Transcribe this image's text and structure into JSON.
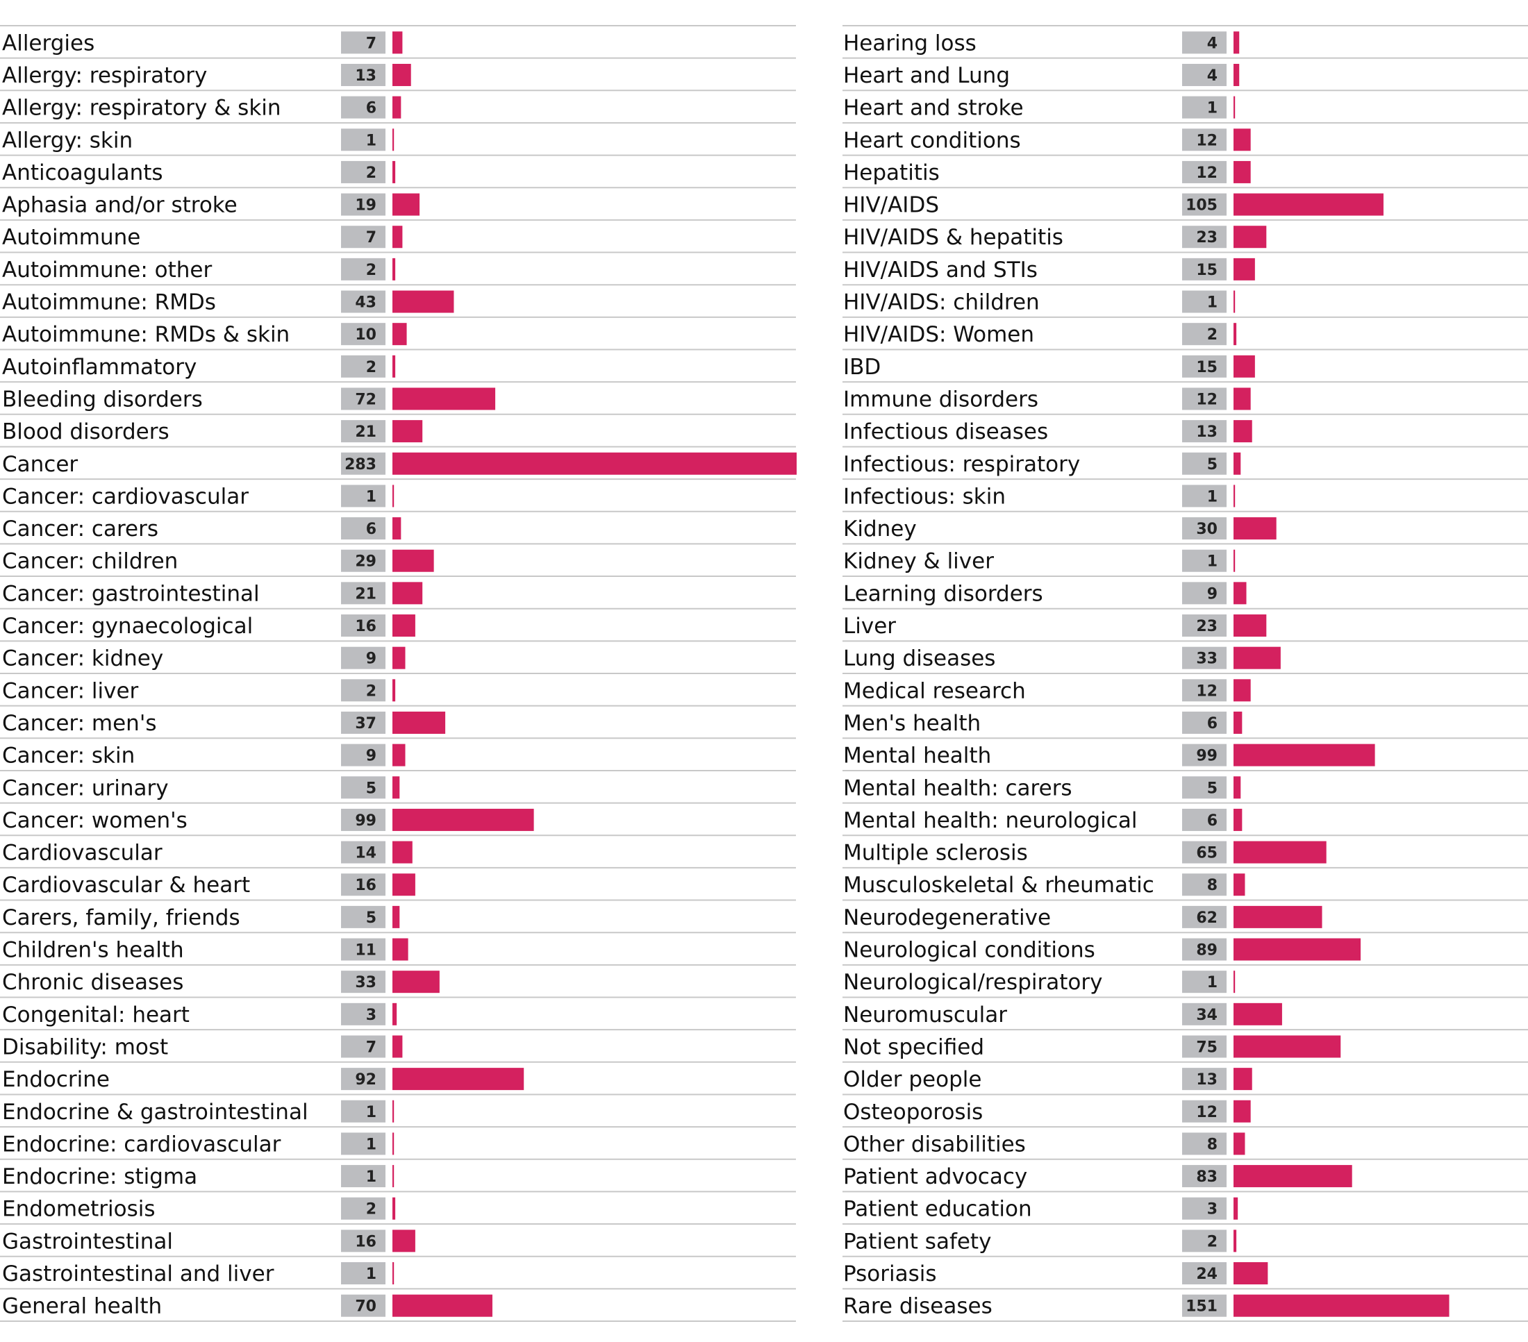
{
  "chart_data": [
    {
      "type": "bar",
      "orientation": "horizontal",
      "categories": [
        "Allergies",
        "Allergy: respiratory",
        "Allergy: respiratory & skin",
        "Allergy: skin",
        "Anticoagulants",
        "Aphasia and/or stroke",
        "Autoimmune",
        "Autoimmune: other",
        "Autoimmune: RMDs",
        "Autoimmune: RMDs & skin",
        "Autoinflammatory",
        "Bleeding disorders",
        "Blood disorders",
        "Cancer",
        "Cancer: cardiovascular",
        "Cancer: carers",
        "Cancer: children",
        "Cancer: gastrointestinal",
        "Cancer: gynaecological",
        "Cancer: kidney",
        "Cancer: liver",
        "Cancer: men's",
        "Cancer: skin",
        "Cancer: urinary",
        "Cancer: women's",
        "Cardiovascular",
        "Cardiovascular & heart",
        "Carers, family, friends",
        "Children's health",
        "Chronic diseases",
        "Congenital: heart",
        "Disability: most",
        "Endocrine",
        "Endocrine & gastrointestinal",
        "Endocrine: cardiovascular",
        "Endocrine: stigma",
        "Endometriosis",
        "Gastrointestinal",
        "Gastrointestinal and liver",
        "General health"
      ],
      "values": [
        7,
        13,
        6,
        1,
        2,
        19,
        7,
        2,
        43,
        10,
        2,
        72,
        21,
        283,
        1,
        6,
        29,
        21,
        16,
        9,
        2,
        37,
        9,
        5,
        99,
        14,
        16,
        5,
        11,
        33,
        3,
        7,
        92,
        1,
        1,
        1,
        2,
        16,
        1,
        70
      ],
      "xlim": [
        0,
        283
      ],
      "title": "",
      "xlabel": "",
      "ylabel": "",
      "grid": false,
      "legend": "none"
    },
    {
      "type": "bar",
      "orientation": "horizontal",
      "categories": [
        "Hearing loss",
        "Heart and Lung",
        "Heart and stroke",
        "Heart conditions",
        "Hepatitis",
        "HIV/AIDS",
        "HIV/AIDS & hepatitis",
        "HIV/AIDS and STIs",
        "HIV/AIDS: children",
        "HIV/AIDS: Women",
        "IBD",
        "Immune disorders",
        "Infectious diseases",
        "Infectious: respiratory",
        "Infectious: skin",
        "Kidney",
        "Kidney & liver",
        "Learning disorders",
        "Liver",
        "Lung diseases",
        "Medical research",
        "Men's health",
        "Mental health",
        "Mental health: carers",
        "Mental health: neurological",
        "Multiple sclerosis",
        "Musculoskeletal & rheumatic",
        "Neurodegenerative",
        "Neurological conditions",
        "Neurological/respiratory",
        "Neuromuscular",
        "Not specified",
        "Older people",
        "Osteoporosis",
        "Other disabilities",
        "Patient advocacy",
        "Patient education",
        "Patient safety",
        "Psoriasis",
        "Rare diseases"
      ],
      "values": [
        4,
        4,
        1,
        12,
        12,
        105,
        23,
        15,
        1,
        2,
        15,
        12,
        13,
        5,
        1,
        30,
        1,
        9,
        23,
        33,
        12,
        6,
        99,
        5,
        6,
        65,
        8,
        62,
        89,
        1,
        34,
        75,
        13,
        12,
        8,
        83,
        3,
        2,
        24,
        151
      ],
      "xlim": [
        0,
        283
      ],
      "title": "",
      "xlabel": "",
      "ylabel": "",
      "grid": false,
      "legend": "none"
    }
  ],
  "colors": {
    "bar": "#d4215f",
    "value_box": "#bcbdc0",
    "rule": "#c8c8c8",
    "label_text": "#111111"
  }
}
